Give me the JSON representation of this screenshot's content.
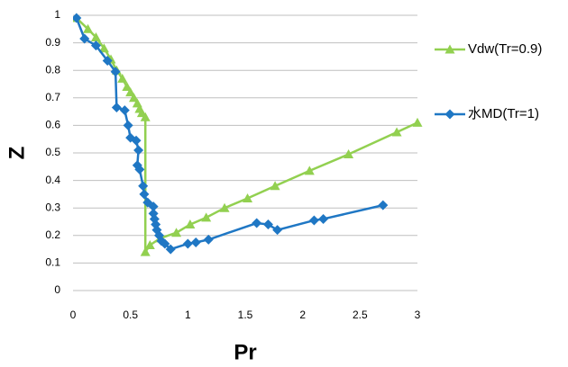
{
  "chart_data": {
    "type": "line",
    "x_label": "Pr",
    "y_label": "Z",
    "xlim": [
      0,
      3
    ],
    "xticks": [
      0,
      0.5,
      1,
      1.5,
      2,
      2.5,
      3
    ],
    "ylim": [
      0,
      1
    ],
    "yticks": [
      0,
      0.1,
      0.2,
      0.3,
      0.4,
      0.5,
      0.6,
      0.7,
      0.8,
      0.9,
      1
    ],
    "grid": true,
    "legend": "right",
    "series": [
      {
        "name": "Vdw(Tr=0.9)",
        "color": "#92d050",
        "marker": "triangle",
        "x": [
          0.03,
          0.13,
          0.2,
          0.27,
          0.33,
          0.38,
          0.43,
          0.47,
          0.5,
          0.53,
          0.56,
          0.58,
          0.6,
          0.63,
          0.63,
          0.67,
          0.76,
          0.9,
          1.02,
          1.16,
          1.32,
          1.52,
          1.76,
          2.06,
          2.4,
          2.82,
          3.0
        ],
        "values": [
          0.99,
          0.95,
          0.92,
          0.88,
          0.84,
          0.8,
          0.77,
          0.74,
          0.72,
          0.7,
          0.68,
          0.66,
          0.645,
          0.63,
          0.14,
          0.165,
          0.19,
          0.21,
          0.24,
          0.265,
          0.3,
          0.335,
          0.38,
          0.435,
          0.495,
          0.575,
          0.61
        ]
      },
      {
        "name": "水MD(Tr=1)",
        "color": "#1f77c4",
        "marker": "diamond",
        "x": [
          0.03,
          0.1,
          0.2,
          0.3,
          0.37,
          0.38,
          0.45,
          0.48,
          0.5,
          0.55,
          0.57,
          0.56,
          0.58,
          0.61,
          0.62,
          0.65,
          0.7,
          0.7,
          0.71,
          0.72,
          0.73,
          0.75,
          0.77,
          0.8,
          0.85,
          1.0,
          1.07,
          1.18,
          1.6,
          1.7,
          1.78,
          2.1,
          2.18,
          2.7
        ],
        "values": [
          0.99,
          0.915,
          0.89,
          0.835,
          0.795,
          0.665,
          0.655,
          0.6,
          0.555,
          0.545,
          0.51,
          0.455,
          0.44,
          0.38,
          0.35,
          0.32,
          0.305,
          0.28,
          0.26,
          0.24,
          0.22,
          0.2,
          0.18,
          0.17,
          0.15,
          0.17,
          0.175,
          0.185,
          0.245,
          0.24,
          0.22,
          0.255,
          0.26,
          0.31
        ]
      }
    ]
  }
}
